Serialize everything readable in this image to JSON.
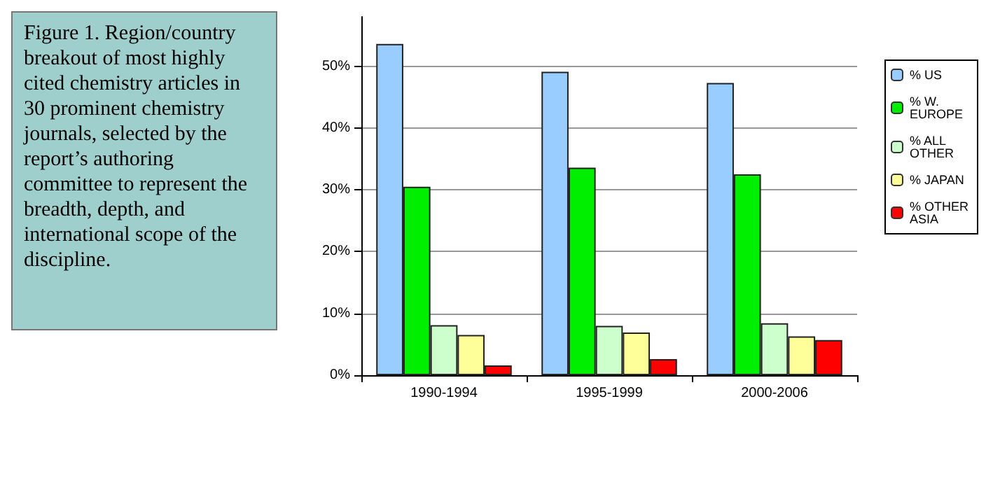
{
  "chart_data": {
    "type": "bar",
    "annotations": [
      "Figure 1. Region/country breakout of most highly cited chemistry articles in 30 prominent chemistry journals, selected by the report’s authoring committee to represent the breadth, depth, and international scope of the discipline."
    ],
    "categories": [
      "1990-1994",
      "1995-1999",
      "2000-2006"
    ],
    "series": [
      {
        "name": "% US",
        "color": "#99ccff",
        "values": [
          53.6,
          49.1,
          47.3
        ]
      },
      {
        "name": "% W. EUROPE",
        "color": "#00ee00",
        "values": [
          30.5,
          33.6,
          32.5
        ]
      },
      {
        "name": "% ALL OTHER",
        "color": "#ccffcc",
        "values": [
          8.1,
          8.0,
          8.4
        ]
      },
      {
        "name": "% JAPAN",
        "color": "#ffff99",
        "values": [
          6.5,
          6.9,
          6.3
        ]
      },
      {
        "name": "% OTHER ASIA",
        "color": "#ff0000",
        "values": [
          1.6,
          2.6,
          5.7
        ]
      }
    ],
    "ylim": [
      0,
      58
    ],
    "yticks": [
      {
        "value": 0,
        "label": "0%"
      },
      {
        "value": 10,
        "label": "10%"
      },
      {
        "value": 20,
        "label": "20%"
      },
      {
        "value": 30,
        "label": "30%"
      },
      {
        "value": 40,
        "label": "40%"
      },
      {
        "value": 50,
        "label": "50%"
      }
    ],
    "grid": "y",
    "legend": "right"
  }
}
